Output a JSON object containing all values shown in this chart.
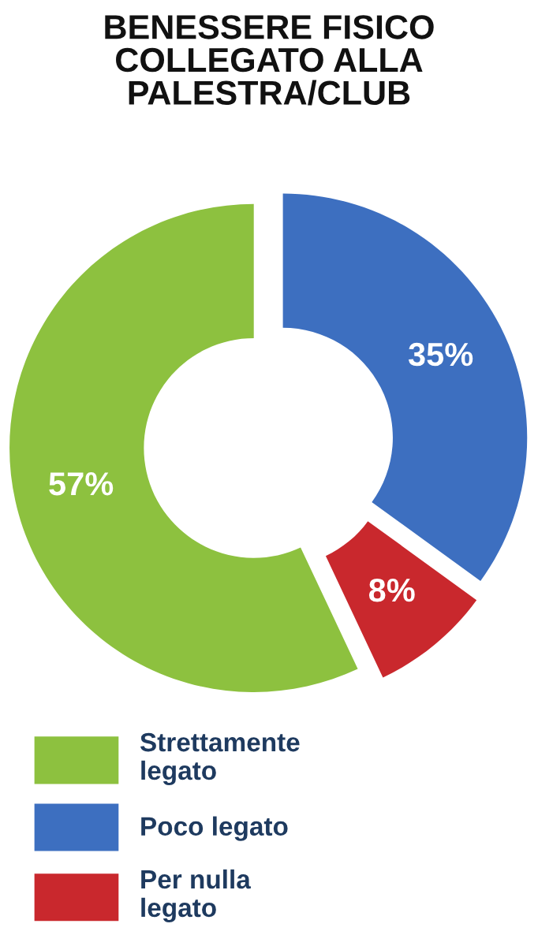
{
  "chart_data": {
    "type": "donut",
    "title": "BENESSERE FISICO\nCOLLEGATO ALLA\nPALESTRA/CLUB",
    "categories": [
      "Strettamente\nlegato",
      "Poco legato",
      "Per nulla\nlegato"
    ],
    "values": [
      57,
      35,
      8
    ],
    "colors": [
      "#8dc13f",
      "#3d6fc0",
      "#c9282d"
    ],
    "value_labels": [
      "57%",
      "35%",
      "8%"
    ],
    "legend": "bottom"
  }
}
